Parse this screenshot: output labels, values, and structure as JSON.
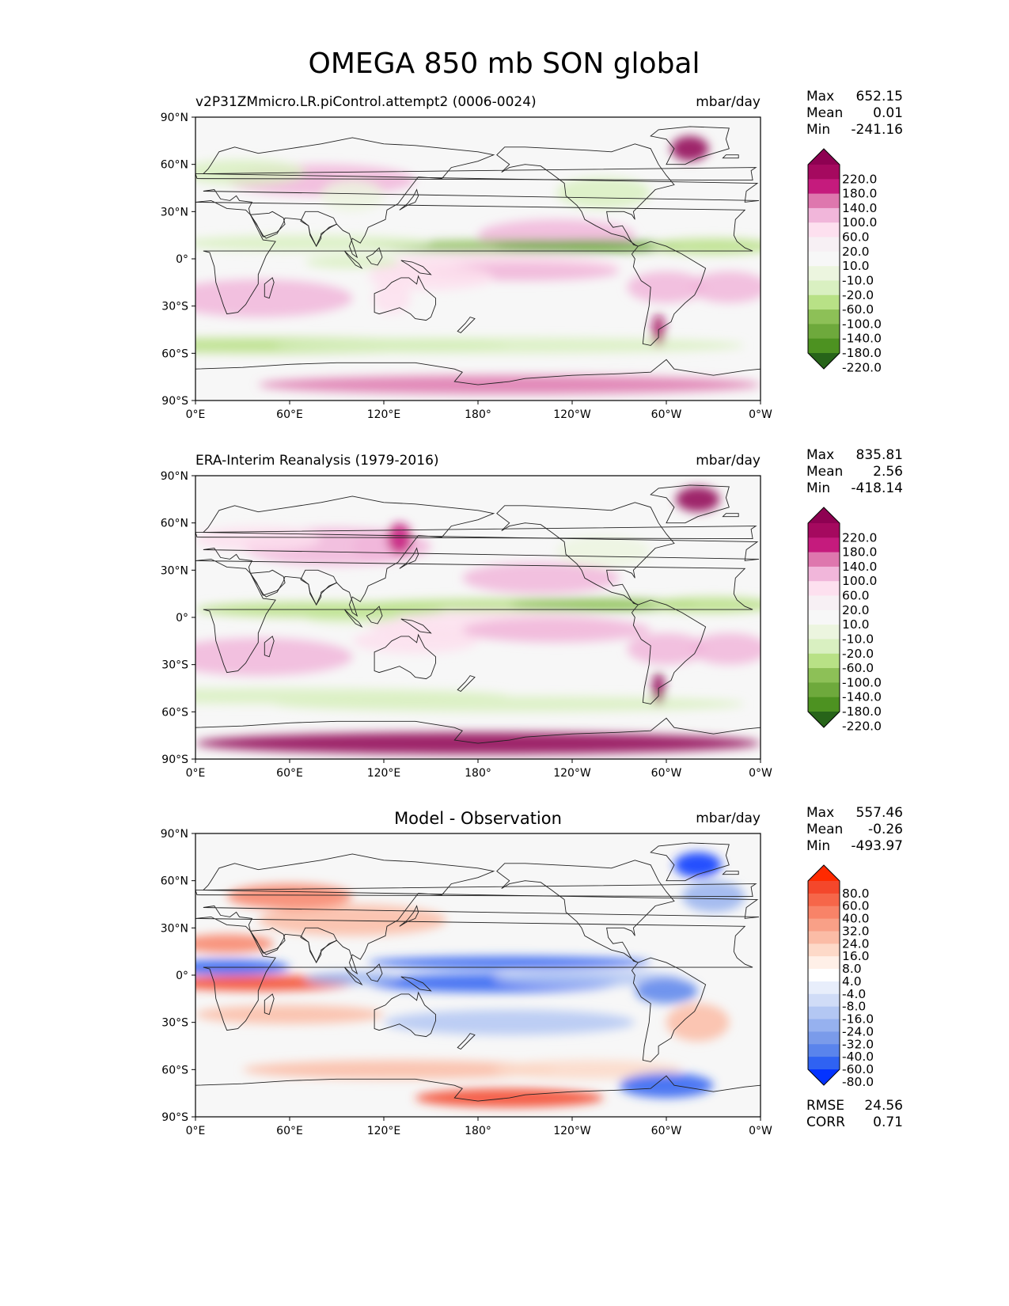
{
  "figure_title": "OMEGA 850 mb SON global",
  "colors": {
    "ocean_bg": "#f7f7f7",
    "frame": "#000000",
    "coast": "#222222"
  },
  "chart_data": [
    {
      "type": "heatmap",
      "panel": "model",
      "title_left": "v2P31ZMmicro.LR.piControl.attempt2 (0006-0024)",
      "title_center": "",
      "units": "mbar/day",
      "stats": [
        [
          "Max",
          "652.15"
        ],
        [
          "Mean",
          "0.01"
        ],
        [
          "Min",
          "-241.16"
        ]
      ],
      "xlabels": [
        "0°E",
        "60°E",
        "120°E",
        "180°",
        "120°W",
        "60°W",
        "0°W"
      ],
      "ylabels": [
        "90°N",
        "60°N",
        "30°N",
        "0°",
        "30°S",
        "60°S",
        "90°S"
      ],
      "xlim": [
        0,
        360
      ],
      "ylim": [
        -90,
        90
      ],
      "colorbar": {
        "labels": [
          "220.0",
          "180.0",
          "140.0",
          "100.0",
          "60.0",
          "20.0",
          "10.0",
          "-10.0",
          "-20.0",
          "-60.0",
          "-100.0",
          "-140.0",
          "-180.0",
          "-220.0"
        ],
        "colors": [
          "#8e0152",
          "#a5095f",
          "#c51b7d",
          "#de77ae",
          "#f1b6da",
          "#fde0ef",
          "#f7f0f4",
          "#f7f7f7",
          "#ecf5df",
          "#d9f0c1",
          "#b8e186",
          "#8dc057",
          "#6ea93c",
          "#4d9221",
          "#276419"
        ]
      },
      "extra_stats": []
    },
    {
      "type": "heatmap",
      "panel": "obs",
      "title_left": "ERA-Interim Reanalysis (1979-2016)",
      "title_center": "",
      "units": "mbar/day",
      "stats": [
        [
          "Max",
          "835.81"
        ],
        [
          "Mean",
          "2.56"
        ],
        [
          "Min",
          "-418.14"
        ]
      ],
      "xlabels": [
        "0°E",
        "60°E",
        "120°E",
        "180°",
        "120°W",
        "60°W",
        "0°W"
      ],
      "ylabels": [
        "90°N",
        "60°N",
        "30°N",
        "0°",
        "30°S",
        "60°S",
        "90°S"
      ],
      "xlim": [
        0,
        360
      ],
      "ylim": [
        -90,
        90
      ],
      "colorbar": {
        "labels": [
          "220.0",
          "180.0",
          "140.0",
          "100.0",
          "60.0",
          "20.0",
          "10.0",
          "-10.0",
          "-20.0",
          "-60.0",
          "-100.0",
          "-140.0",
          "-180.0",
          "-220.0"
        ],
        "colors": [
          "#8e0152",
          "#a5095f",
          "#c51b7d",
          "#de77ae",
          "#f1b6da",
          "#fde0ef",
          "#f7f0f4",
          "#f7f7f7",
          "#ecf5df",
          "#d9f0c1",
          "#b8e186",
          "#8dc057",
          "#6ea93c",
          "#4d9221",
          "#276419"
        ]
      },
      "extra_stats": []
    },
    {
      "type": "heatmap",
      "panel": "diff",
      "title_left": "",
      "title_center": "Model - Observation",
      "units": "mbar/day",
      "stats": [
        [
          "Max",
          "557.46"
        ],
        [
          "Mean",
          "-0.26"
        ],
        [
          "Min",
          "-493.97"
        ]
      ],
      "xlabels": [
        "0°E",
        "60°E",
        "120°E",
        "180°",
        "120°W",
        "60°W",
        "0°W"
      ],
      "ylabels": [
        "90°N",
        "60°N",
        "30°N",
        "0°",
        "30°S",
        "60°S",
        "90°S"
      ],
      "xlim": [
        0,
        360
      ],
      "ylim": [
        -90,
        90
      ],
      "colorbar": {
        "labels": [
          "80.0",
          "60.0",
          "40.0",
          "32.0",
          "24.0",
          "16.0",
          "8.0",
          "4.0",
          "-4.0",
          "-8.0",
          "-16.0",
          "-24.0",
          "-32.0",
          "-40.0",
          "-60.0",
          "-80.0"
        ],
        "colors": [
          "#ff2a00",
          "#f4472b",
          "#f66649",
          "#f88368",
          "#f9a087",
          "#fbbca6",
          "#fdd9c8",
          "#fff0e8",
          "#ffffff",
          "#e8eefb",
          "#d0dcf7",
          "#b3c7f3",
          "#96b1ef",
          "#7a9bea",
          "#5a84ec",
          "#2f62f2",
          "#0433ff"
        ]
      },
      "extra_stats": [
        [
          "RMSE",
          "24.56"
        ],
        [
          "CORR",
          "0.71"
        ]
      ]
    }
  ]
}
